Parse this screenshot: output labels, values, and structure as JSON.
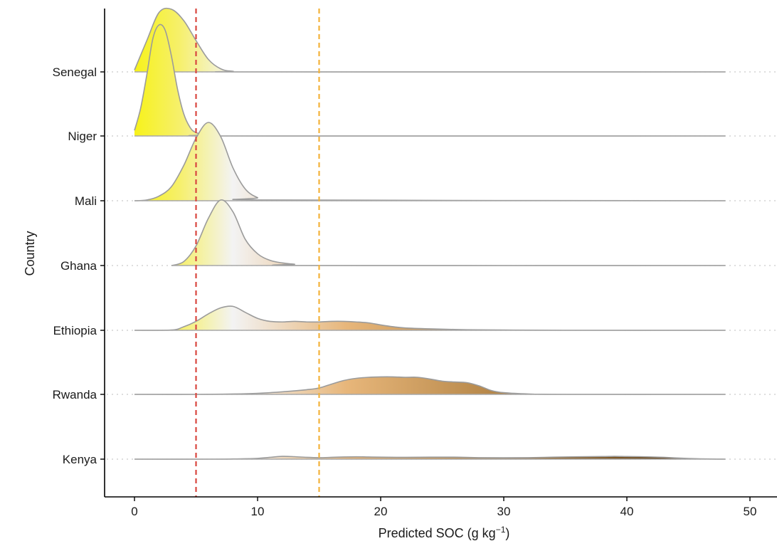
{
  "chart_data": {
    "type": "ridgeline",
    "title": "",
    "xlabel": "Predicted SOC (g kg",
    "xlabel_sup": "−1",
    "xlabel_tail": ")",
    "ylabel": "Country",
    "xlim": [
      -2.5,
      52
    ],
    "x_ticks": [
      0,
      10,
      20,
      30,
      40,
      50
    ],
    "x_tick_labels": [
      "0",
      "10",
      "20",
      "30",
      "40",
      "50"
    ],
    "grid": false,
    "reference_lines": [
      {
        "x": 5,
        "color": "#d9473f",
        "style": "dashed"
      },
      {
        "x": 15,
        "color": "#f2b23a",
        "style": "dashed"
      }
    ],
    "color_scale": {
      "low": "#f7f21a",
      "mid": "#f3f3f3",
      "high": "#5a3a12",
      "low_value": 0,
      "mid_value": 8,
      "high_value": 45
    },
    "categories": [
      "Senegal",
      "Niger",
      "Mali",
      "Ghana",
      "Ethiopia",
      "Rwanda",
      "Kenya"
    ],
    "series": [
      {
        "name": "Senegal",
        "x": [
          0,
          1,
          2,
          3,
          4,
          5,
          6,
          7,
          8,
          10,
          48
        ],
        "density": [
          0.03,
          0.5,
          0.95,
          1.0,
          0.82,
          0.5,
          0.2,
          0.05,
          0.01,
          0.0,
          0.0
        ]
      },
      {
        "name": "Niger",
        "x": [
          0,
          0.5,
          1,
          1.5,
          2,
          2.5,
          3,
          3.5,
          4,
          4.5,
          5,
          6,
          8,
          48
        ],
        "density": [
          0.05,
          0.25,
          0.55,
          0.88,
          1.0,
          0.95,
          0.72,
          0.42,
          0.2,
          0.08,
          0.03,
          0.01,
          0.0,
          0.0
        ]
      },
      {
        "name": "Mali",
        "x": [
          0,
          1,
          2,
          3,
          4,
          5,
          6,
          7,
          8,
          9,
          10,
          11,
          48
        ],
        "density": [
          0.0,
          0.01,
          0.06,
          0.18,
          0.45,
          0.8,
          1.0,
          0.82,
          0.42,
          0.15,
          0.04,
          0.01,
          0.0
        ]
      },
      {
        "name": "Ghana",
        "x": [
          3,
          4,
          5,
          6,
          7,
          8,
          9,
          10,
          11,
          12,
          13,
          14,
          48
        ],
        "density": [
          0.0,
          0.06,
          0.3,
          0.72,
          1.0,
          0.82,
          0.4,
          0.18,
          0.08,
          0.04,
          0.02,
          0.0,
          0.0
        ]
      },
      {
        "name": "Ethiopia",
        "x": [
          0,
          3,
          4,
          5,
          6,
          7,
          8,
          9,
          10,
          11,
          12,
          13,
          14,
          15,
          16,
          17,
          18,
          19,
          20,
          21,
          22,
          24,
          27,
          30,
          35,
          48
        ],
        "density": [
          0.0,
          0.01,
          0.12,
          0.3,
          0.55,
          0.75,
          0.8,
          0.6,
          0.4,
          0.3,
          0.28,
          0.3,
          0.28,
          0.28,
          0.3,
          0.3,
          0.28,
          0.25,
          0.18,
          0.12,
          0.08,
          0.05,
          0.02,
          0.01,
          0.0,
          0.0
        ]
      },
      {
        "name": "Rwanda",
        "x": [
          0,
          5,
          8,
          10,
          12,
          14,
          15,
          16,
          17,
          18,
          19,
          20,
          21,
          22,
          23,
          24,
          25,
          26,
          27,
          28,
          29,
          30,
          32,
          35,
          48
        ],
        "density": [
          0.0,
          0.0,
          0.02,
          0.05,
          0.12,
          0.22,
          0.3,
          0.48,
          0.65,
          0.75,
          0.8,
          0.82,
          0.82,
          0.8,
          0.8,
          0.72,
          0.62,
          0.58,
          0.55,
          0.4,
          0.18,
          0.08,
          0.02,
          0.0,
          0.0
        ]
      },
      {
        "name": "Kenya",
        "x": [
          0,
          6,
          8,
          10,
          11,
          12,
          13,
          14,
          15,
          16,
          17,
          18,
          19,
          20,
          22,
          24,
          26,
          28,
          30,
          32,
          34,
          36,
          38,
          39,
          40,
          41,
          42,
          43,
          44,
          45,
          46,
          47,
          48
        ],
        "density": [
          0.0,
          0.0,
          0.02,
          0.08,
          0.18,
          0.28,
          0.25,
          0.18,
          0.15,
          0.18,
          0.22,
          0.24,
          0.22,
          0.2,
          0.18,
          0.2,
          0.2,
          0.15,
          0.14,
          0.15,
          0.2,
          0.24,
          0.26,
          0.28,
          0.26,
          0.25,
          0.22,
          0.18,
          0.12,
          0.07,
          0.03,
          0.01,
          0.0
        ]
      }
    ]
  }
}
